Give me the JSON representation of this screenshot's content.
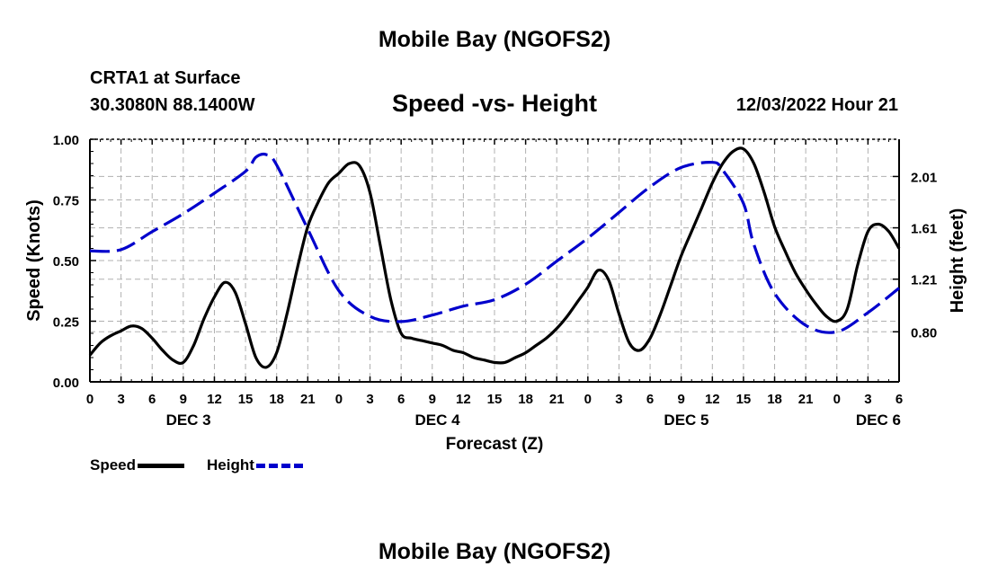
{
  "header": {
    "title": "Mobile Bay (NGOFS2)",
    "station": "CRTA1 at Surface",
    "coords": "30.3080N  88.1400W",
    "chart_title": "Speed -vs- Height",
    "timestamp": "12/03/2022 Hour 21"
  },
  "footer": {
    "title": "Mobile Bay (NGOFS2)"
  },
  "legend": {
    "speed_label": "Speed",
    "height_label": "Height"
  },
  "colors": {
    "speed": "#000000",
    "height": "#0000cc",
    "grid": "#b0b0b0"
  },
  "chart_data": {
    "type": "line",
    "title": "Speed -vs- Height",
    "xlabel": "Forecast (Z)",
    "ylabel": "Speed (Knots)",
    "y2label": "Height (feet)",
    "xlim": [
      0,
      78
    ],
    "ylim": [
      0,
      1
    ],
    "y2lim": [
      0.41,
      2.3
    ],
    "x_tick_values": [
      0,
      3,
      6,
      9,
      12,
      15,
      18,
      21,
      24,
      27,
      30,
      33,
      36,
      39,
      42,
      45,
      48,
      51,
      54,
      57,
      60,
      63,
      66,
      69,
      72,
      75,
      78
    ],
    "x_tick_labels": [
      "0",
      "3",
      "6",
      "9",
      "12",
      "15",
      "18",
      "21",
      "0",
      "3",
      "6",
      "9",
      "12",
      "15",
      "18",
      "21",
      "0",
      "3",
      "6",
      "9",
      "12",
      "15",
      "18",
      "21",
      "0",
      "3",
      "6"
    ],
    "day_labels": [
      {
        "label": "DEC 3",
        "x": 9.5
      },
      {
        "label": "DEC 4",
        "x": 33.5
      },
      {
        "label": "DEC 5",
        "x": 57.5
      },
      {
        "label": "DEC 6",
        "x": 76
      }
    ],
    "y_ticks": [
      0,
      0.25,
      0.5,
      0.75,
      1.0
    ],
    "y_tick_labels": [
      "0.00",
      "0.25",
      "0.50",
      "0.75",
      "1.00"
    ],
    "y2_ticks": [
      0.8,
      1.21,
      1.61,
      2.01
    ],
    "y2_tick_labels": [
      "0.80",
      "1.21",
      "1.61",
      "2.01"
    ],
    "series": [
      {
        "name": "Speed",
        "axis": "left",
        "style": "solid",
        "x": [
          0,
          1,
          2,
          3,
          4,
          5,
          6,
          7,
          8,
          9,
          10,
          11,
          12,
          13,
          14,
          15,
          16,
          17,
          18,
          19,
          20,
          21,
          22,
          23,
          24,
          25,
          26,
          27,
          28,
          29,
          30,
          31,
          32,
          33,
          34,
          35,
          36,
          37,
          38,
          39,
          40,
          41,
          42,
          43,
          44,
          45,
          46,
          47,
          48,
          49,
          50,
          51,
          52,
          53,
          54,
          55,
          56,
          57,
          58,
          59,
          60,
          61,
          62,
          63,
          64,
          65,
          66,
          67,
          68,
          69,
          70,
          71,
          72,
          73,
          74,
          75,
          76,
          77,
          78
        ],
        "values": [
          0.11,
          0.16,
          0.19,
          0.21,
          0.23,
          0.22,
          0.18,
          0.13,
          0.09,
          0.08,
          0.15,
          0.26,
          0.35,
          0.41,
          0.37,
          0.24,
          0.1,
          0.06,
          0.12,
          0.28,
          0.47,
          0.64,
          0.74,
          0.82,
          0.86,
          0.9,
          0.89,
          0.78,
          0.56,
          0.34,
          0.2,
          0.18,
          0.17,
          0.16,
          0.15,
          0.13,
          0.12,
          0.1,
          0.09,
          0.08,
          0.08,
          0.1,
          0.12,
          0.15,
          0.18,
          0.22,
          0.27,
          0.33,
          0.39,
          0.46,
          0.42,
          0.28,
          0.16,
          0.13,
          0.18,
          0.28,
          0.4,
          0.52,
          0.62,
          0.72,
          0.82,
          0.9,
          0.95,
          0.96,
          0.9,
          0.78,
          0.64,
          0.54,
          0.45,
          0.38,
          0.32,
          0.27,
          0.25,
          0.3,
          0.48,
          0.62,
          0.65,
          0.62,
          0.55
        ]
      },
      {
        "name": "Height",
        "axis": "right",
        "style": "dashed",
        "x": [
          0,
          3,
          6,
          9,
          12,
          15,
          16,
          17,
          18,
          21,
          24,
          27,
          30,
          33,
          36,
          39,
          42,
          45,
          48,
          51,
          54,
          57,
          60,
          61,
          63,
          64,
          66,
          69,
          72,
          75,
          78
        ],
        "values": [
          1.43,
          1.44,
          1.58,
          1.72,
          1.88,
          2.05,
          2.16,
          2.18,
          2.1,
          1.6,
          1.12,
          0.92,
          0.88,
          0.93,
          1.0,
          1.05,
          1.17,
          1.35,
          1.53,
          1.73,
          1.93,
          2.08,
          2.12,
          2.06,
          1.8,
          1.48,
          1.1,
          0.85,
          0.8,
          0.95,
          1.14
        ]
      }
    ]
  }
}
